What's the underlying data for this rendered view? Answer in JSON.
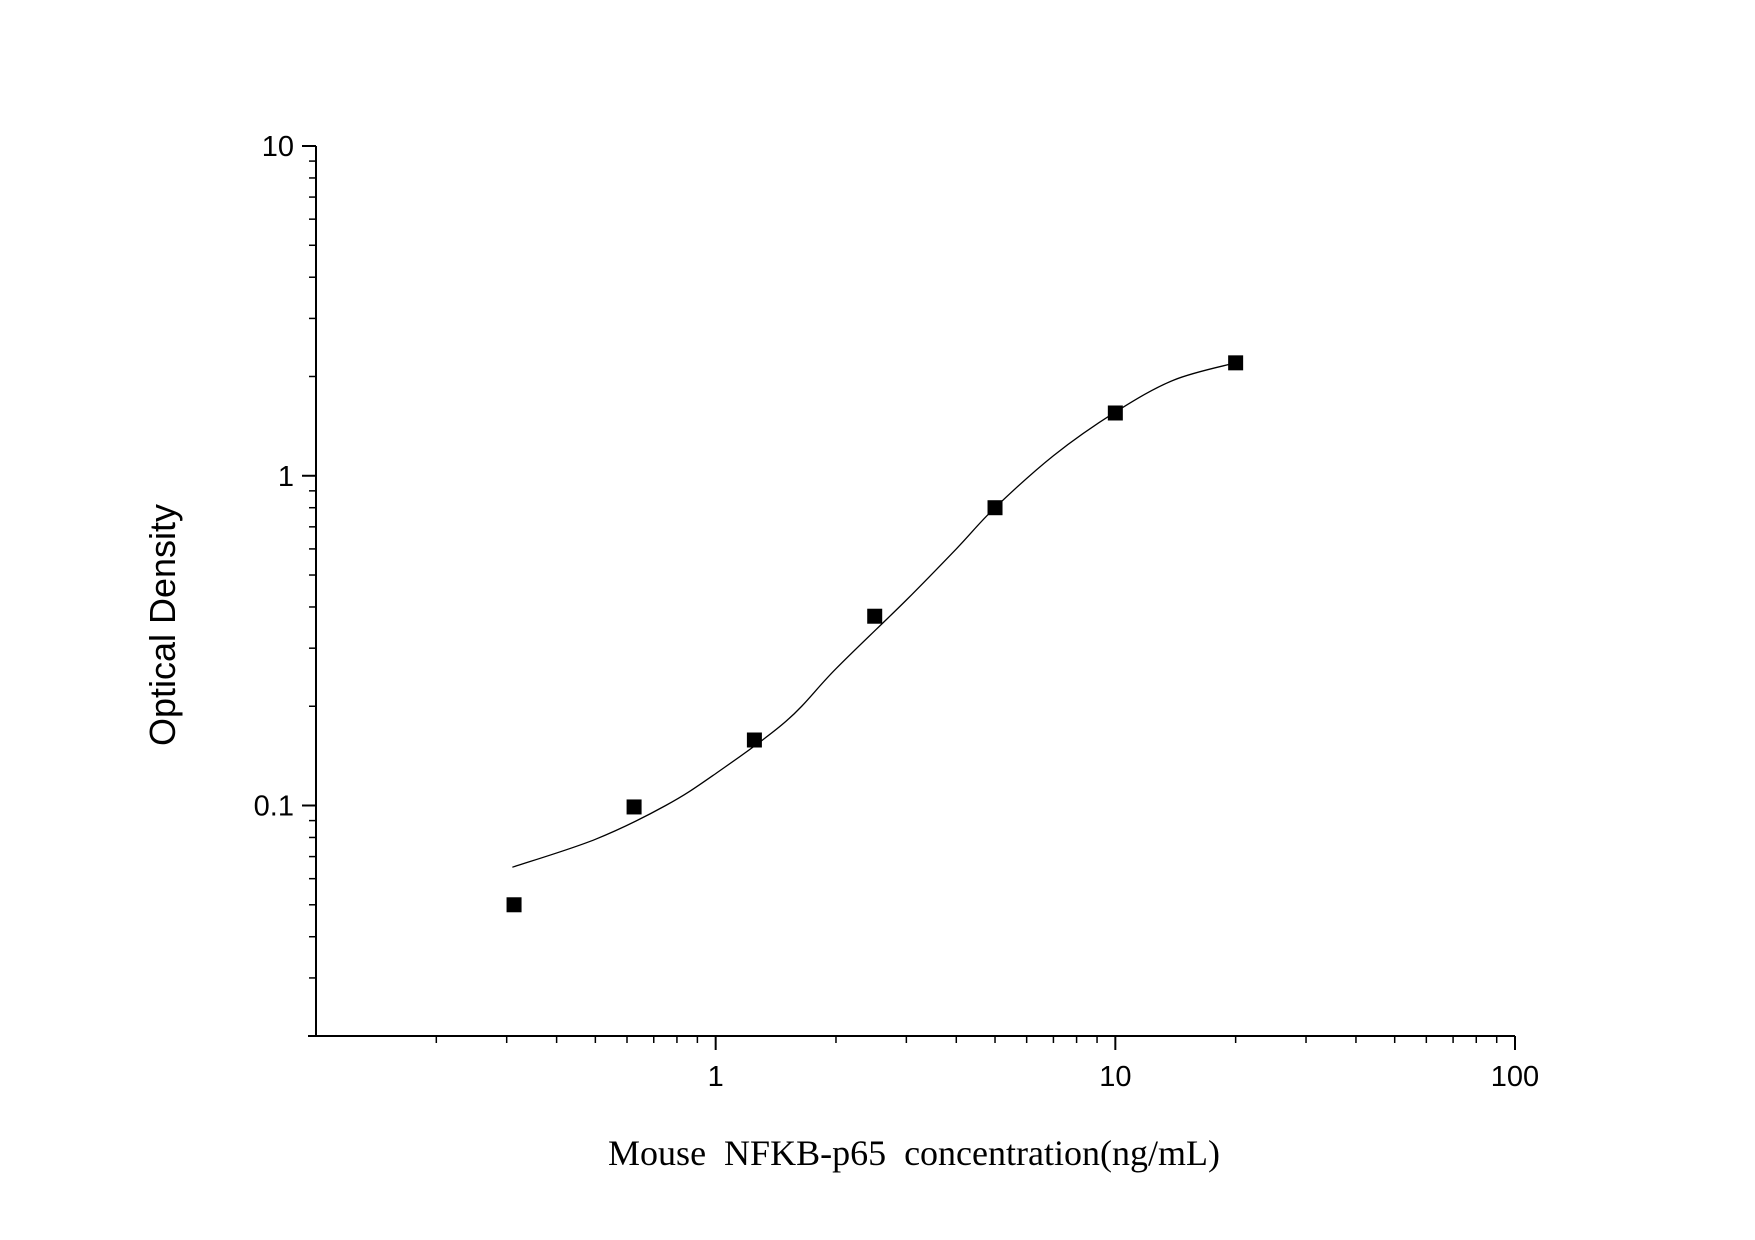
{
  "chart_data": {
    "type": "scatter",
    "title": "",
    "xlabel": "Mouse  NFKB-p65  concentration(ng/mL)",
    "ylabel": "Optical Density",
    "x_scale": "log",
    "y_scale": "log",
    "xlim": [
      0.1,
      100
    ],
    "ylim": [
      0.02,
      10
    ],
    "x_ticks": [
      {
        "value": 1,
        "label": "1"
      },
      {
        "value": 10,
        "label": "10"
      },
      {
        "value": 100,
        "label": "100"
      }
    ],
    "y_ticks": [
      {
        "value": 0.1,
        "label": "0.1"
      },
      {
        "value": 1,
        "label": "1"
      },
      {
        "value": 10,
        "label": "10"
      }
    ],
    "grid": false,
    "legend": "none",
    "series": [
      {
        "type": "scatter",
        "marker": "square",
        "color": "#000000",
        "points": [
          {
            "x": 0.313,
            "y": 0.05
          },
          {
            "x": 0.625,
            "y": 0.099
          },
          {
            "x": 1.25,
            "y": 0.158
          },
          {
            "x": 2.5,
            "y": 0.375
          },
          {
            "x": 5,
            "y": 0.8
          },
          {
            "x": 10,
            "y": 1.55
          },
          {
            "x": 20,
            "y": 2.2
          }
        ]
      },
      {
        "type": "line",
        "style": "fitted-curve",
        "color": "#000000",
        "points": [
          {
            "x": 0.31,
            "y": 0.065
          },
          {
            "x": 0.5,
            "y": 0.079
          },
          {
            "x": 0.75,
            "y": 0.1
          },
          {
            "x": 1,
            "y": 0.125
          },
          {
            "x": 1.5,
            "y": 0.18
          },
          {
            "x": 2,
            "y": 0.26
          },
          {
            "x": 3,
            "y": 0.42
          },
          {
            "x": 4,
            "y": 0.6
          },
          {
            "x": 5,
            "y": 0.8
          },
          {
            "x": 7,
            "y": 1.15
          },
          {
            "x": 10,
            "y": 1.56
          },
          {
            "x": 14,
            "y": 1.95
          },
          {
            "x": 20,
            "y": 2.2
          }
        ]
      }
    ]
  }
}
